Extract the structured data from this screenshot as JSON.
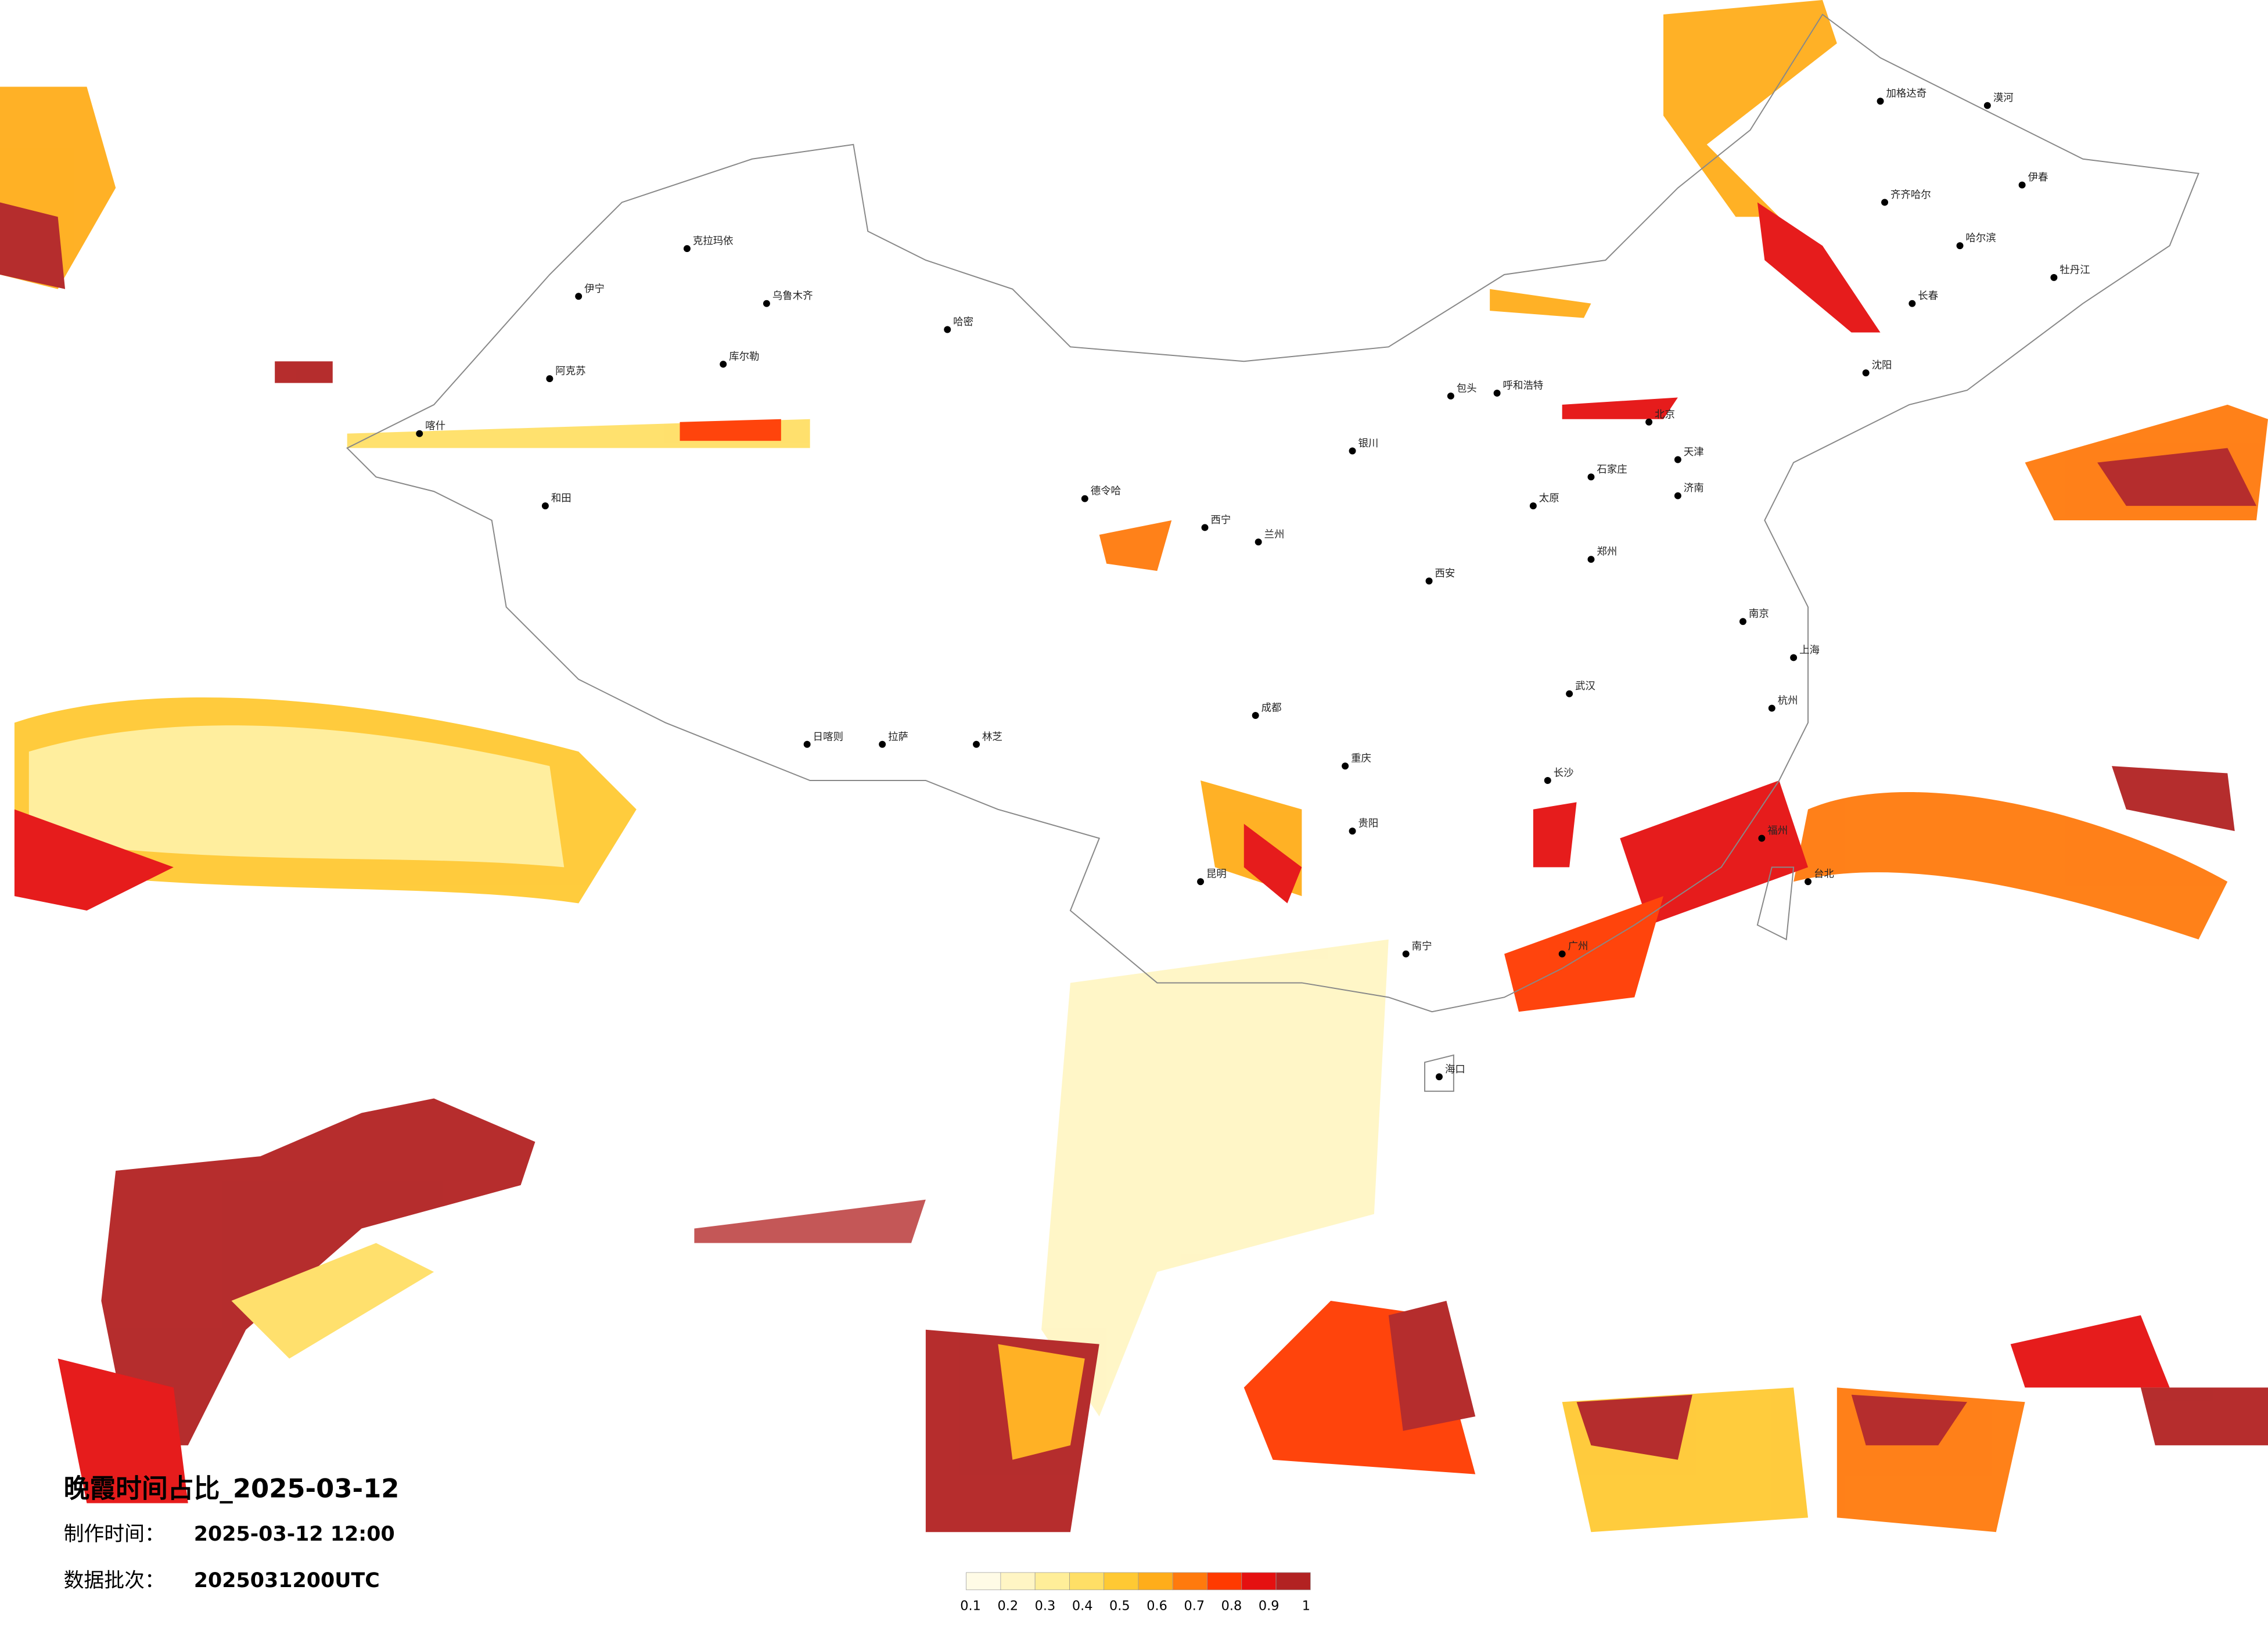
{
  "map": {
    "title": "晚霞时间占比_2025-03-12",
    "made_label": "制作时间：",
    "made_time": "2025-03-12 12:00",
    "batch_label": "数据批次：",
    "batch": "2025031200UTC",
    "legend": {
      "colors": [
        "#fffbe6",
        "#fff5c4",
        "#ffee99",
        "#ffdf66",
        "#ffc933",
        "#ffad1a",
        "#ff7a0d",
        "#ff3a00",
        "#e51010",
        "#b22222"
      ],
      "ticks": [
        0.1,
        0.2,
        0.3,
        0.4,
        0.5,
        0.6,
        0.7,
        0.8,
        0.9,
        1
      ]
    },
    "cities": [
      "漠河",
      "加格达奇",
      "伊春",
      "齐齐哈尔",
      "哈尔滨",
      "牡丹江",
      "长春",
      "沈阳",
      "北京",
      "天津",
      "石家庄",
      "太原",
      "呼和浩特",
      "包头",
      "银川",
      "兰州",
      "西宁",
      "西安",
      "郑州",
      "济南",
      "武汉",
      "长沙",
      "南京",
      "上海",
      "杭州",
      "福州",
      "广州",
      "南宁",
      "贵阳",
      "昆明",
      "成都",
      "重庆",
      "拉萨",
      "乌鲁木齐",
      "克拉玛依",
      "伊宁",
      "喀什",
      "和田",
      "日喀则",
      "林芝",
      "台北",
      "海口",
      "阿克苏",
      "库尔勒",
      "哈密",
      "德令哈"
    ]
  }
}
